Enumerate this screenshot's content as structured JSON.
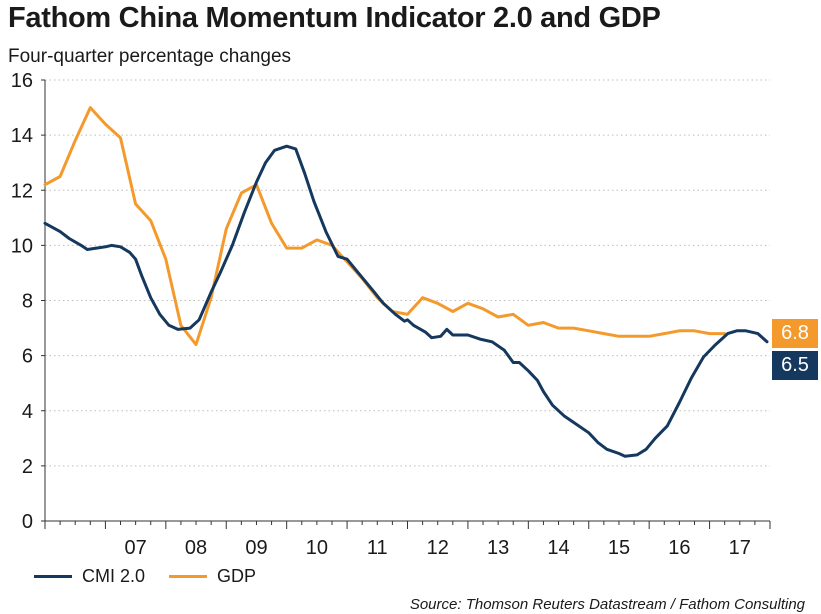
{
  "title": "Fathom China Momentum Indicator 2.0 and GDP",
  "subtitle": "Four-quarter percentage changes",
  "source": "Source: Thomson Reuters Datastream / Fathom Consulting",
  "colors": {
    "cmi": "#14385e",
    "gdp": "#f49a2d",
    "axis": "#333333",
    "grid": "#bdbdbd"
  },
  "callouts": {
    "gdp_latest": "6.8",
    "cmi_latest": "6.5"
  },
  "chart_data": {
    "type": "line",
    "title": "Fathom China Momentum Indicator 2.0 and GDP",
    "subtitle": "Four-quarter percentage changes",
    "xlabel": "",
    "ylabel": "",
    "ylim": [
      0,
      16
    ],
    "yticks": [
      "0",
      "2",
      "4",
      "6",
      "8",
      "10",
      "12",
      "14",
      "16"
    ],
    "xlim": [
      2006.0,
      2018.0
    ],
    "xtick_labels": [
      "07",
      "08",
      "09",
      "10",
      "11",
      "12",
      "13",
      "14",
      "15",
      "16",
      "17"
    ],
    "xtick_positions": [
      2007,
      2008,
      2009,
      2010,
      2011,
      2012,
      2013,
      2014,
      2015,
      2016,
      2017
    ],
    "grid": "horizontal dotted",
    "legend_placement": "bottom-left",
    "series": [
      {
        "name": "CMI 2.0",
        "color": "#14385e",
        "points": [
          [
            2006.0,
            10.8
          ],
          [
            2006.25,
            10.5
          ],
          [
            2006.4,
            10.25
          ],
          [
            2006.6,
            10.0
          ],
          [
            2006.7,
            9.85
          ],
          [
            2006.85,
            9.9
          ],
          [
            2007.0,
            9.95
          ],
          [
            2007.1,
            10.0
          ],
          [
            2007.25,
            9.95
          ],
          [
            2007.4,
            9.75
          ],
          [
            2007.5,
            9.5
          ],
          [
            2007.6,
            8.9
          ],
          [
            2007.75,
            8.1
          ],
          [
            2007.9,
            7.5
          ],
          [
            2008.05,
            7.1
          ],
          [
            2008.2,
            6.95
          ],
          [
            2008.4,
            7.0
          ],
          [
            2008.55,
            7.3
          ],
          [
            2008.75,
            8.3
          ],
          [
            2008.9,
            9.0
          ],
          [
            2009.1,
            10.0
          ],
          [
            2009.3,
            11.2
          ],
          [
            2009.5,
            12.3
          ],
          [
            2009.65,
            13.0
          ],
          [
            2009.8,
            13.45
          ],
          [
            2010.0,
            13.6
          ],
          [
            2010.15,
            13.5
          ],
          [
            2010.3,
            12.6
          ],
          [
            2010.45,
            11.6
          ],
          [
            2010.65,
            10.5
          ],
          [
            2010.85,
            9.6
          ],
          [
            2011.0,
            9.5
          ],
          [
            2011.15,
            9.1
          ],
          [
            2011.3,
            8.7
          ],
          [
            2011.45,
            8.3
          ],
          [
            2011.6,
            7.9
          ],
          [
            2011.8,
            7.5
          ],
          [
            2011.95,
            7.25
          ],
          [
            2012.0,
            7.3
          ],
          [
            2012.1,
            7.1
          ],
          [
            2012.3,
            6.85
          ],
          [
            2012.4,
            6.65
          ],
          [
            2012.55,
            6.7
          ],
          [
            2012.65,
            6.95
          ],
          [
            2012.75,
            6.75
          ],
          [
            2013.0,
            6.75
          ],
          [
            2013.2,
            6.6
          ],
          [
            2013.4,
            6.5
          ],
          [
            2013.6,
            6.2
          ],
          [
            2013.75,
            5.75
          ],
          [
            2013.85,
            5.75
          ],
          [
            2014.0,
            5.45
          ],
          [
            2014.15,
            5.1
          ],
          [
            2014.25,
            4.7
          ],
          [
            2014.4,
            4.2
          ],
          [
            2014.6,
            3.8
          ],
          [
            2014.8,
            3.5
          ],
          [
            2015.0,
            3.2
          ],
          [
            2015.15,
            2.85
          ],
          [
            2015.3,
            2.6
          ],
          [
            2015.5,
            2.45
          ],
          [
            2015.6,
            2.35
          ],
          [
            2015.8,
            2.4
          ],
          [
            2015.95,
            2.6
          ],
          [
            2016.1,
            3.0
          ],
          [
            2016.3,
            3.45
          ],
          [
            2016.5,
            4.3
          ],
          [
            2016.7,
            5.2
          ],
          [
            2016.9,
            5.95
          ],
          [
            2017.1,
            6.4
          ],
          [
            2017.3,
            6.8
          ],
          [
            2017.45,
            6.9
          ],
          [
            2017.6,
            6.9
          ],
          [
            2017.8,
            6.8
          ],
          [
            2017.95,
            6.5
          ]
        ]
      },
      {
        "name": "GDP",
        "color": "#f49a2d",
        "points": [
          [
            2006.0,
            12.2
          ],
          [
            2006.25,
            12.5
          ],
          [
            2006.5,
            13.8
          ],
          [
            2006.75,
            15.0
          ],
          [
            2007.0,
            14.4
          ],
          [
            2007.25,
            13.9
          ],
          [
            2007.5,
            11.5
          ],
          [
            2007.75,
            10.9
          ],
          [
            2008.0,
            9.5
          ],
          [
            2008.25,
            7.1
          ],
          [
            2008.5,
            6.4
          ],
          [
            2008.75,
            8.1
          ],
          [
            2009.0,
            10.6
          ],
          [
            2009.25,
            11.9
          ],
          [
            2009.5,
            12.2
          ],
          [
            2009.75,
            10.8
          ],
          [
            2010.0,
            9.9
          ],
          [
            2010.25,
            9.9
          ],
          [
            2010.5,
            10.2
          ],
          [
            2010.75,
            10.0
          ],
          [
            2011.0,
            9.4
          ],
          [
            2011.25,
            8.8
          ],
          [
            2011.5,
            8.1
          ],
          [
            2011.75,
            7.6
          ],
          [
            2012.0,
            7.5
          ],
          [
            2012.25,
            8.1
          ],
          [
            2012.5,
            7.9
          ],
          [
            2012.75,
            7.6
          ],
          [
            2013.0,
            7.9
          ],
          [
            2013.25,
            7.7
          ],
          [
            2013.5,
            7.4
          ],
          [
            2013.75,
            7.5
          ],
          [
            2014.0,
            7.1
          ],
          [
            2014.25,
            7.2
          ],
          [
            2014.5,
            7.0
          ],
          [
            2014.75,
            7.0
          ],
          [
            2015.0,
            6.9
          ],
          [
            2015.25,
            6.8
          ],
          [
            2015.5,
            6.7
          ],
          [
            2015.75,
            6.7
          ],
          [
            2016.0,
            6.7
          ],
          [
            2016.25,
            6.8
          ],
          [
            2016.5,
            6.9
          ],
          [
            2016.75,
            6.9
          ],
          [
            2017.0,
            6.8
          ],
          [
            2017.25,
            6.8
          ]
        ]
      }
    ]
  }
}
